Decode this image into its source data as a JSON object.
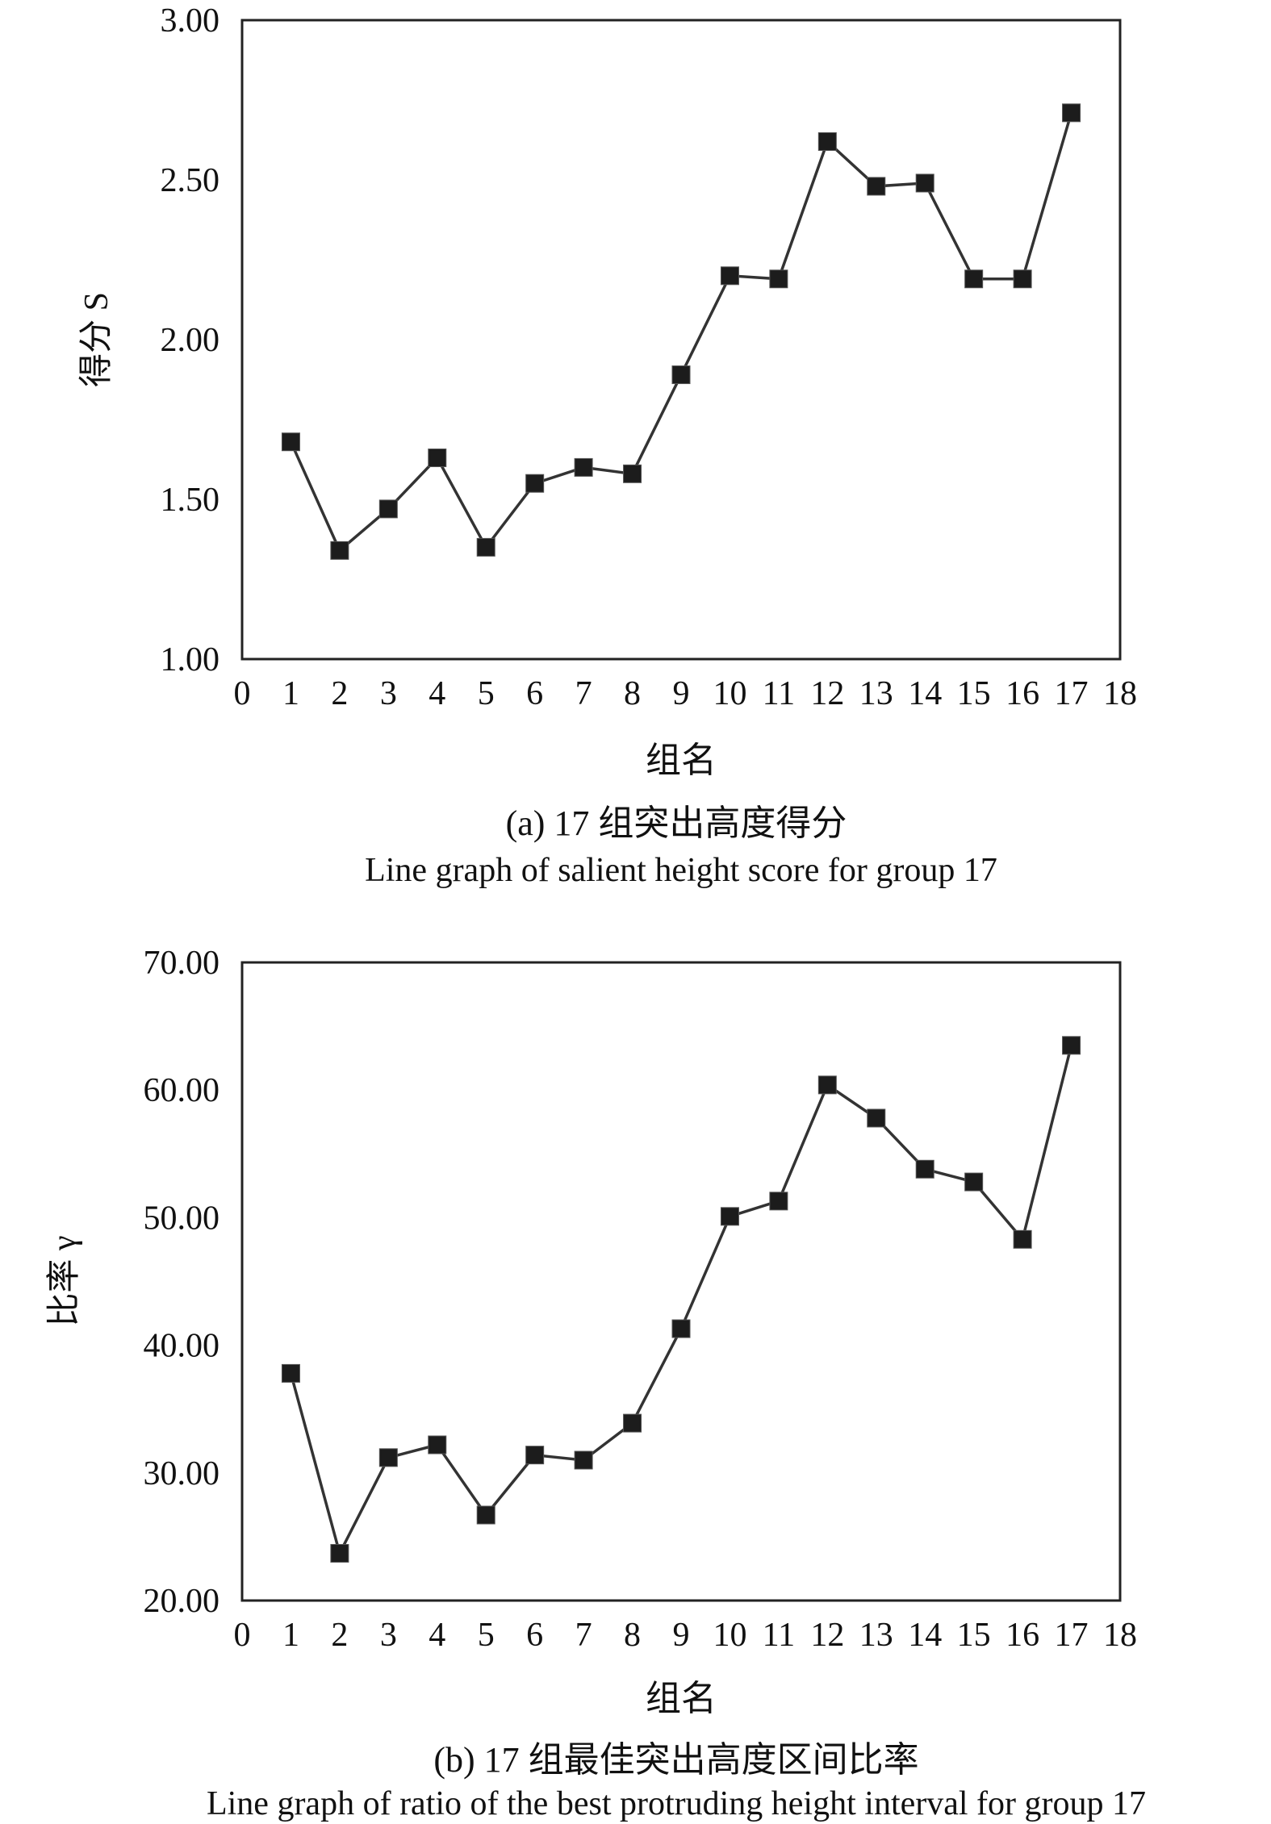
{
  "chart_data": [
    {
      "type": "line",
      "ylabel": "得分 S",
      "xlabel": "组名",
      "caption_cn": "(a) 17 组突出高度得分",
      "caption_en": "Line graph of salient height score for group 17",
      "xlim": [
        0,
        18
      ],
      "ylim": [
        1.0,
        3.0
      ],
      "xticks": [
        "0",
        "1",
        "2",
        "3",
        "4",
        "5",
        "6",
        "7",
        "8",
        "9",
        "10",
        "11",
        "12",
        "13",
        "14",
        "15",
        "16",
        "17",
        "18"
      ],
      "yticks": [
        "1.00",
        "1.50",
        "2.00",
        "2.50",
        "3.00"
      ],
      "ytick_values": [
        1.0,
        1.5,
        2.0,
        2.5,
        3.0
      ],
      "grid": false,
      "series": [
        {
          "x": [
            1,
            2,
            3,
            4,
            5,
            6,
            7,
            8,
            9,
            10,
            11,
            12,
            13,
            14,
            15,
            16,
            17
          ],
          "values": [
            1.68,
            1.34,
            1.47,
            1.63,
            1.35,
            1.55,
            1.6,
            1.58,
            1.89,
            2.2,
            2.19,
            2.62,
            2.48,
            2.49,
            2.19,
            2.19,
            2.71
          ]
        }
      ]
    },
    {
      "type": "line",
      "ylabel": "比率 γ",
      "xlabel": "组名",
      "caption_cn": "(b) 17 组最佳突出高度区间比率",
      "caption_en": "Line graph of ratio of the best protruding height interval for group 17",
      "xlim": [
        0,
        18
      ],
      "ylim": [
        20.0,
        70.0
      ],
      "xticks": [
        "0",
        "1",
        "2",
        "3",
        "4",
        "5",
        "6",
        "7",
        "8",
        "9",
        "10",
        "11",
        "12",
        "13",
        "14",
        "15",
        "16",
        "17",
        "18"
      ],
      "yticks": [
        "20.00",
        "30.00",
        "40.00",
        "50.00",
        "60.00",
        "70.00"
      ],
      "ytick_values": [
        20,
        30,
        40,
        50,
        60,
        70
      ],
      "grid": false,
      "series": [
        {
          "x": [
            1,
            2,
            3,
            4,
            5,
            6,
            7,
            8,
            9,
            10,
            11,
            12,
            13,
            14,
            15,
            16,
            17
          ],
          "values": [
            37.8,
            23.7,
            31.2,
            32.2,
            26.7,
            31.4,
            31.0,
            33.9,
            41.3,
            50.1,
            51.3,
            60.4,
            57.8,
            53.8,
            52.8,
            48.3,
            63.5
          ]
        }
      ]
    }
  ]
}
